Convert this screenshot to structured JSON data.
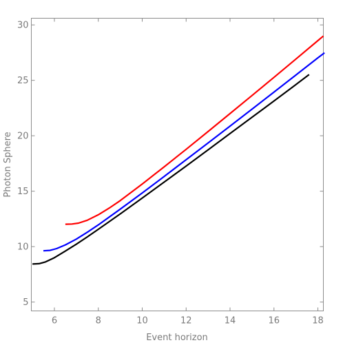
{
  "chart_data": {
    "type": "line",
    "title": "",
    "xlabel": "Event horizon",
    "ylabel": "Photon Sphere",
    "xlim": [
      4.95,
      18.25
    ],
    "ylim": [
      4.2,
      30.6
    ],
    "x_ticks": [
      6,
      8,
      10,
      12,
      14,
      16,
      18
    ],
    "y_ticks": [
      5,
      10,
      15,
      20,
      25,
      30
    ],
    "grid": false,
    "legend": "none",
    "series": [
      {
        "color": "#000000",
        "points": [
          [
            5.0,
            8.43
          ],
          [
            5.3,
            8.46
          ],
          [
            5.6,
            8.62
          ],
          [
            6.0,
            9.0
          ],
          [
            6.5,
            9.6
          ],
          [
            7.0,
            10.22
          ],
          [
            7.5,
            10.88
          ],
          [
            8.0,
            11.56
          ],
          [
            9.0,
            12.95
          ],
          [
            10.0,
            14.38
          ],
          [
            11.0,
            15.82
          ],
          [
            12.0,
            17.27
          ],
          [
            13.0,
            18.73
          ],
          [
            14.0,
            20.2
          ],
          [
            15.0,
            21.67
          ],
          [
            16.0,
            23.14
          ],
          [
            17.0,
            24.62
          ],
          [
            17.6,
            25.52
          ]
        ]
      },
      {
        "color": "#0000ff",
        "points": [
          [
            5.5,
            9.62
          ],
          [
            5.8,
            9.66
          ],
          [
            6.1,
            9.82
          ],
          [
            6.5,
            10.16
          ],
          [
            7.0,
            10.68
          ],
          [
            7.5,
            11.3
          ],
          [
            8.0,
            11.96
          ],
          [
            9.0,
            13.38
          ],
          [
            10.0,
            14.84
          ],
          [
            11.0,
            16.33
          ],
          [
            12.0,
            17.84
          ],
          [
            13.0,
            19.35
          ],
          [
            14.0,
            20.87
          ],
          [
            15.0,
            22.4
          ],
          [
            16.0,
            23.94
          ],
          [
            17.0,
            25.48
          ],
          [
            18.0,
            27.03
          ],
          [
            18.3,
            27.48
          ]
        ]
      },
      {
        "color": "#ff0000",
        "points": [
          [
            6.5,
            12.02
          ],
          [
            6.8,
            12.04
          ],
          [
            7.1,
            12.12
          ],
          [
            7.5,
            12.38
          ],
          [
            8.0,
            12.87
          ],
          [
            8.5,
            13.48
          ],
          [
            9.0,
            14.15
          ],
          [
            10.0,
            15.65
          ],
          [
            11.0,
            17.2
          ],
          [
            12.0,
            18.78
          ],
          [
            13.0,
            20.38
          ],
          [
            14.0,
            22.0
          ],
          [
            15.0,
            23.63
          ],
          [
            16.0,
            25.27
          ],
          [
            17.0,
            26.92
          ],
          [
            18.0,
            28.58
          ],
          [
            18.25,
            29.0
          ]
        ]
      }
    ]
  }
}
